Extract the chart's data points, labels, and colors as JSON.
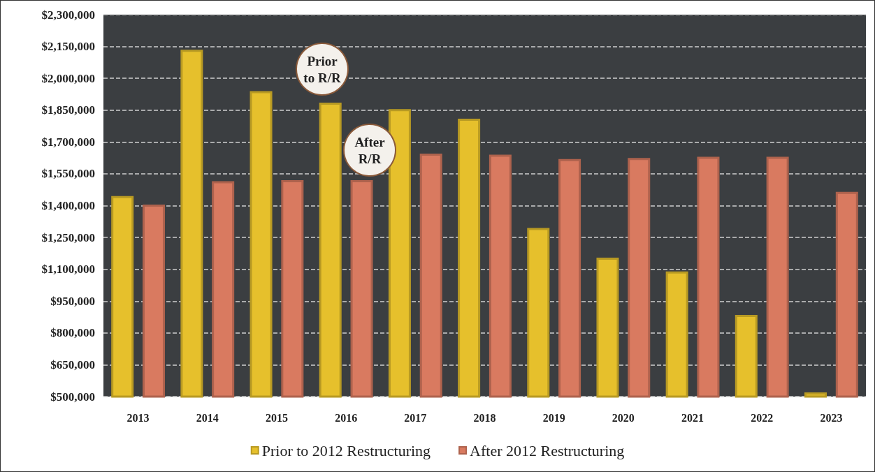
{
  "chart_data": {
    "type": "bar",
    "categories": [
      "2013",
      "2014",
      "2015",
      "2016",
      "2017",
      "2018",
      "2019",
      "2020",
      "2021",
      "2022",
      "2023"
    ],
    "series": [
      {
        "name": "Prior to 2012 Restructuring",
        "color": "#e6c02c",
        "values": [
          1445000,
          2135000,
          1940000,
          1885000,
          1855000,
          1810000,
          1295000,
          1155000,
          1090000,
          885000,
          520000
        ]
      },
      {
        "name": "After 2012 Restructuring",
        "color": "#d97a60",
        "values": [
          1405000,
          1515000,
          1520000,
          1520000,
          1645000,
          1640000,
          1620000,
          1625000,
          1630000,
          1630000,
          1465000
        ]
      }
    ],
    "ylim": [
      500000,
      2300000
    ],
    "yticks": [
      {
        "value": 500000,
        "label": "$500,000"
      },
      {
        "value": 650000,
        "label": "$650,000"
      },
      {
        "value": 800000,
        "label": "$800,000"
      },
      {
        "value": 950000,
        "label": "$950,000"
      },
      {
        "value": 1100000,
        "label": "$1,100,000"
      },
      {
        "value": 1250000,
        "label": "$1,250,000"
      },
      {
        "value": 1400000,
        "label": "$1,400,000"
      },
      {
        "value": 1550000,
        "label": "$1,550,000"
      },
      {
        "value": 1700000,
        "label": "$1,700,000"
      },
      {
        "value": 1850000,
        "label": "$1,850,000"
      },
      {
        "value": 2000000,
        "label": "$2,000,000"
      },
      {
        "value": 2150000,
        "label": "$2,150,000"
      },
      {
        "value": 2300000,
        "label": "$2,300,000"
      }
    ],
    "grid": "y",
    "legend": "bottom",
    "annotations": [
      "Prior\nto R/R",
      "After\nR/R"
    ]
  }
}
